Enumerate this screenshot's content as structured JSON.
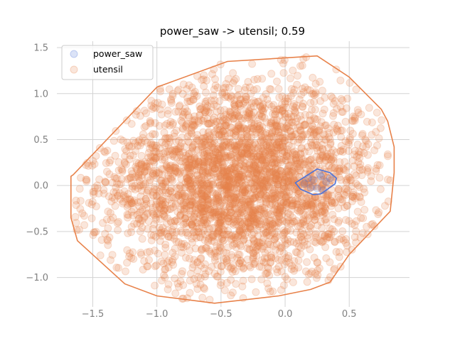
{
  "chart_data": {
    "type": "scatter",
    "title": "power_saw -> utensil; 0.59",
    "xlabel": "",
    "ylabel": "",
    "xlim": [
      -1.78,
      0.97
    ],
    "ylim": [
      -1.32,
      1.57
    ],
    "xticks": [
      -1.5,
      -1.0,
      -0.5,
      0.0,
      0.5
    ],
    "xtick_labels": [
      "−1.5",
      "−1.0",
      "−0.5",
      "0.0",
      "0.5"
    ],
    "yticks": [
      -1.0,
      -0.5,
      0.0,
      0.5,
      1.0,
      1.5
    ],
    "ytick_labels": [
      "−1.0",
      "−0.5",
      "0.0",
      "0.5",
      "1.0",
      "1.5"
    ],
    "grid": true,
    "legend_position": "top-left",
    "series": [
      {
        "name": "power_saw",
        "color": "#4c72d8",
        "point_alpha": 0.2,
        "hull": [
          [
            0.08,
            0.03
          ],
          [
            0.25,
            0.18
          ],
          [
            0.35,
            0.14
          ],
          [
            0.4,
            0.08
          ],
          [
            0.39,
            0.02
          ],
          [
            0.33,
            -0.04
          ],
          [
            0.28,
            -0.09
          ],
          [
            0.22,
            -0.1
          ],
          [
            0.12,
            -0.04
          ]
        ],
        "points": [
          [
            0.15,
            0.02
          ],
          [
            0.22,
            0.06
          ],
          [
            0.28,
            0.1
          ],
          [
            0.32,
            0.04
          ],
          [
            0.25,
            -0.03
          ],
          [
            0.3,
            -0.05
          ],
          [
            0.2,
            -0.02
          ],
          [
            0.35,
            0.08
          ],
          [
            0.27,
            0.12
          ],
          [
            0.18,
            0.08
          ]
        ]
      },
      {
        "name": "utensil",
        "color": "#e8824a",
        "point_alpha": 0.2,
        "point_count": 3200,
        "center": [
          -0.35,
          0.05
        ],
        "hull": [
          [
            -1.65,
            0.12
          ],
          [
            -1.0,
            1.07
          ],
          [
            -0.45,
            1.35
          ],
          [
            0.25,
            1.41
          ],
          [
            0.5,
            1.18
          ],
          [
            0.75,
            0.83
          ],
          [
            0.8,
            0.7
          ],
          [
            0.85,
            0.42
          ],
          [
            0.85,
            0.14
          ],
          [
            0.82,
            -0.28
          ],
          [
            0.5,
            -0.75
          ],
          [
            0.35,
            -1.05
          ],
          [
            0.2,
            -1.13
          ],
          [
            -0.05,
            -1.2
          ],
          [
            -0.55,
            -1.28
          ],
          [
            -1.0,
            -1.2
          ],
          [
            -1.25,
            -1.07
          ],
          [
            -1.62,
            -0.6
          ],
          [
            -1.67,
            -0.35
          ],
          [
            -1.67,
            0.1
          ]
        ]
      }
    ]
  }
}
